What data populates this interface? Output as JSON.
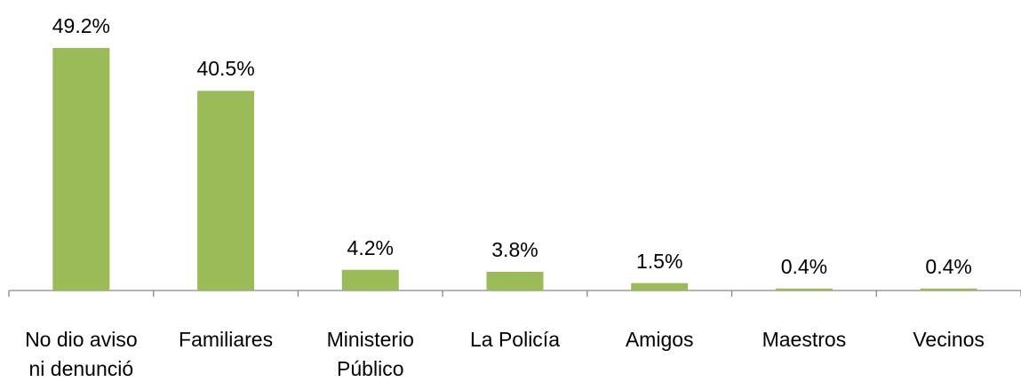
{
  "chart_data": {
    "type": "bar",
    "categories": [
      "No dio aviso ni denunció",
      "Familiares",
      "Ministerio Público",
      "La Policía",
      "Amigos",
      "Maestros",
      "Vecinos"
    ],
    "values": [
      49.2,
      40.5,
      4.2,
      3.8,
      1.5,
      0.4,
      0.4
    ],
    "value_labels": [
      "49.2%",
      "40.5%",
      "4.2%",
      "3.8%",
      "1.5%",
      "0.4%",
      "0.4%"
    ],
    "color": "#9bbb59"
  }
}
